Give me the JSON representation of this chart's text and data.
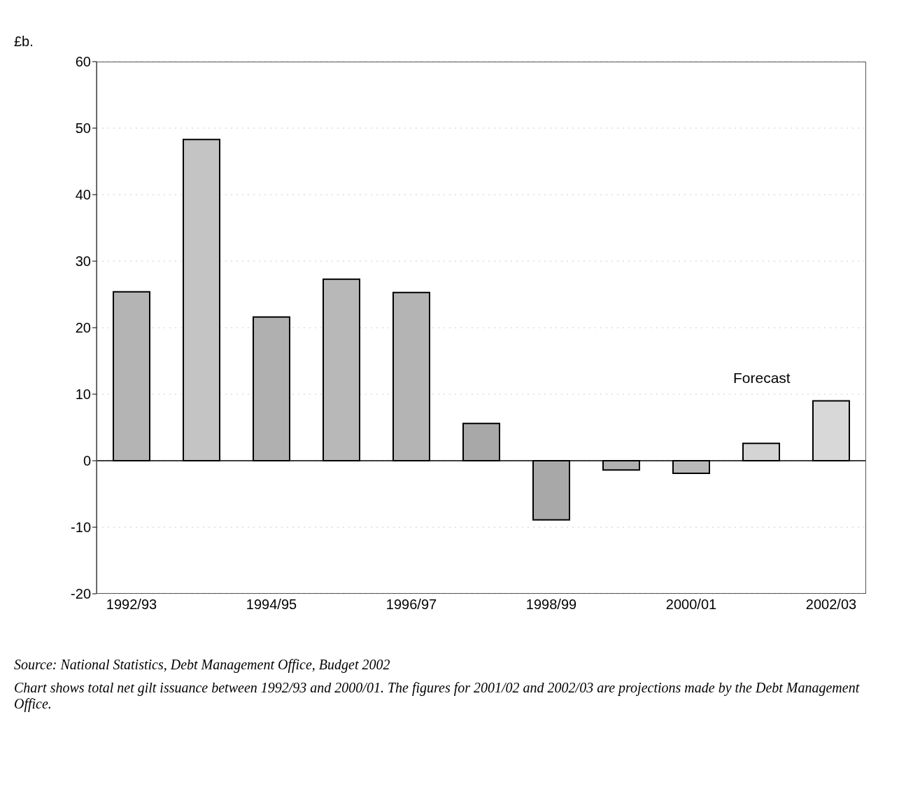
{
  "chart_data": {
    "type": "bar",
    "ylabel": "£b.",
    "categories": [
      "1992/93",
      null,
      "1994/95",
      null,
      "1996/97",
      null,
      "1998/99",
      null,
      "2000/01",
      null,
      "2002/03"
    ],
    "values": [
      25.4,
      48.3,
      21.6,
      27.3,
      25.3,
      5.6,
      -8.9,
      -1.4,
      -1.9,
      2.6,
      9.0
    ],
    "colors": [
      "#b4b4b4",
      "#c4c4c4",
      "#b0b0b0",
      "#b8b8b8",
      "#b4b4b4",
      "#a8a8a8",
      "#a8a8a8",
      "#b0b0b0",
      "#b8b8b8",
      "#d4d4d4",
      "#d8d8d8"
    ],
    "ylim": [
      -20,
      60
    ],
    "yticks": [
      -20,
      -10,
      0,
      10,
      20,
      30,
      40,
      50,
      60
    ],
    "grid": "y",
    "annotations": [
      "Forecast",
      "Source: National Statistics, Debt Management Office, Budget 2002",
      "Chart shows total net gilt issuance between 1992/93 and 2000/01. The figures for 2001/02 and 2002/03 are projections made by the Debt Management Office."
    ]
  }
}
